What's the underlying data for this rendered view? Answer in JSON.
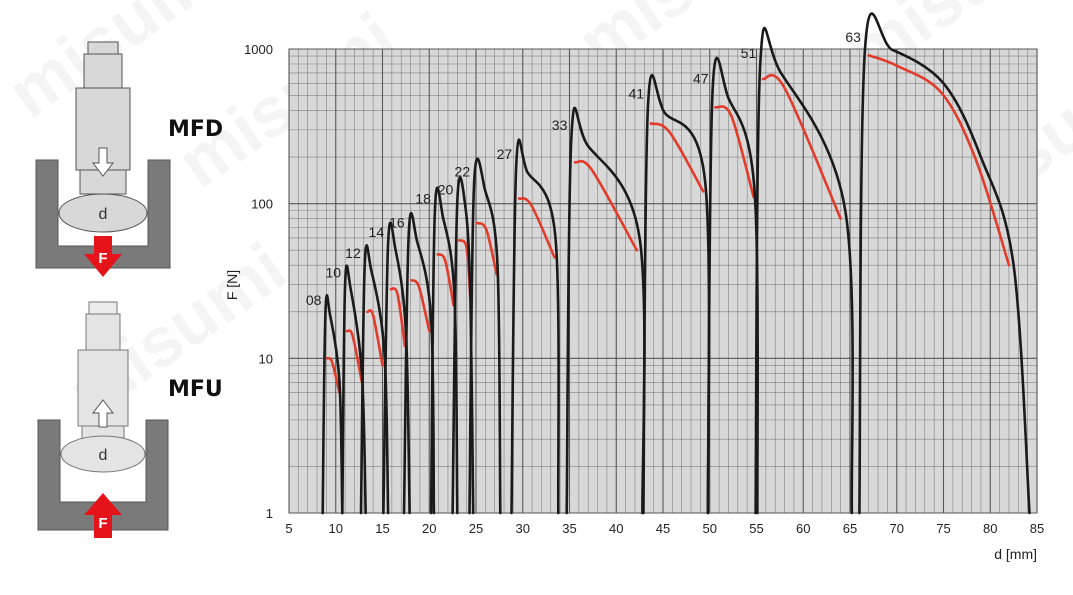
{
  "watermark": "misumi",
  "diagrams": {
    "top": {
      "mode_label": "MFD",
      "size_label": "d",
      "force_label": "F",
      "arrow": "down-arrow-icon"
    },
    "bottom": {
      "mode_label": "MFU",
      "size_label": "d",
      "force_label": "F",
      "arrow": "up-arrow-icon"
    },
    "colors": {
      "body": "#d8d8d8",
      "outline": "#555555",
      "housing": "#7a7a7a",
      "force_arrow": "#e5141b"
    }
  },
  "chart_data": {
    "type": "line",
    "title": "",
    "xlabel": "d [mm]",
    "ylabel": "F [N]",
    "xlim": [
      5,
      85
    ],
    "ylim": [
      1,
      1000
    ],
    "yscale": "log",
    "grid": true,
    "x_ticks": [
      "5",
      "10",
      "15",
      "20",
      "25",
      "30",
      "35",
      "40",
      "45",
      "50",
      "55",
      "60",
      "65",
      "70",
      "75",
      "80",
      "85"
    ],
    "y_ticks": [
      "1",
      "10",
      "100",
      "1000"
    ],
    "colors": {
      "plot_bg": "#d8d8d8",
      "grid": "#4a4a4a",
      "black_curve": "#1a1a1a",
      "red_curve": "#e23b2b"
    },
    "sizes": [
      {
        "label": "08",
        "black": [
          [
            8.6,
            1
          ],
          [
            8.9,
            20
          ],
          [
            9.4,
            19
          ],
          [
            10.4,
            7
          ],
          [
            10.7,
            1
          ]
        ],
        "red": [
          [
            9.1,
            10
          ],
          [
            9.6,
            9.5
          ],
          [
            10.4,
            6
          ]
        ]
      },
      {
        "label": "10",
        "black": [
          [
            10.7,
            1
          ],
          [
            11.0,
            30
          ],
          [
            11.6,
            28
          ],
          [
            12.8,
            8
          ],
          [
            13.2,
            1
          ]
        ],
        "red": [
          [
            11.2,
            15
          ],
          [
            11.8,
            14
          ],
          [
            12.8,
            7
          ]
        ]
      },
      {
        "label": "12",
        "black": [
          [
            12.7,
            1
          ],
          [
            13.1,
            40
          ],
          [
            13.8,
            37
          ],
          [
            15.2,
            11
          ],
          [
            15.6,
            1
          ]
        ],
        "red": [
          [
            13.4,
            20
          ],
          [
            14.0,
            19
          ],
          [
            15.0,
            9
          ]
        ]
      },
      {
        "label": "14",
        "black": [
          [
            15.1,
            1
          ],
          [
            15.6,
            55
          ],
          [
            16.4,
            50
          ],
          [
            17.5,
            15
          ],
          [
            17.9,
            1
          ]
        ],
        "red": [
          [
            15.9,
            28
          ],
          [
            16.6,
            26
          ],
          [
            17.4,
            12
          ]
        ]
      },
      {
        "label": "16",
        "black": [
          [
            17.3,
            1
          ],
          [
            17.8,
            63
          ],
          [
            18.7,
            57
          ],
          [
            20.2,
            18
          ],
          [
            20.5,
            1
          ]
        ],
        "red": [
          [
            18.1,
            32
          ],
          [
            18.9,
            29
          ],
          [
            20.0,
            15
          ]
        ]
      },
      {
        "label": "18",
        "black": [
          [
            20.2,
            1
          ],
          [
            20.6,
            90
          ],
          [
            21.5,
            80
          ],
          [
            22.7,
            25
          ],
          [
            23.0,
            1
          ]
        ],
        "red": [
          [
            20.9,
            47
          ],
          [
            21.7,
            43
          ],
          [
            22.6,
            22
          ]
        ]
      },
      {
        "label": "20",
        "black": [
          [
            22.5,
            1
          ],
          [
            23.0,
            103
          ],
          [
            23.9,
            92
          ],
          [
            24.4,
            25
          ],
          [
            24.7,
            1
          ]
        ],
        "red": [
          [
            23.2,
            58
          ],
          [
            24.0,
            52
          ],
          [
            24.4,
            24
          ]
        ]
      },
      {
        "label": "22",
        "black": [
          [
            24.3,
            1
          ],
          [
            24.8,
            135
          ],
          [
            26.0,
            120
          ],
          [
            27.3,
            40
          ],
          [
            27.6,
            1
          ]
        ],
        "red": [
          [
            25.1,
            75
          ],
          [
            26.1,
            68
          ],
          [
            27.2,
            35
          ]
        ]
      },
      {
        "label": "27",
        "black": [
          [
            28.8,
            1
          ],
          [
            29.3,
            175
          ],
          [
            30.5,
            160
          ],
          [
            33.5,
            60
          ],
          [
            33.8,
            1
          ]
        ],
        "red": [
          [
            29.6,
            108
          ],
          [
            30.9,
            98
          ],
          [
            33.4,
            45
          ]
        ]
      },
      {
        "label": "33",
        "black": [
          [
            34.7,
            1
          ],
          [
            35.2,
            270
          ],
          [
            36.9,
            240
          ],
          [
            42.5,
            60
          ],
          [
            42.8,
            1
          ]
        ],
        "red": [
          [
            35.6,
            185
          ],
          [
            37.4,
            165
          ],
          [
            42.2,
            50
          ]
        ]
      },
      {
        "label": "41",
        "black": [
          [
            42.9,
            1
          ],
          [
            43.4,
            430
          ],
          [
            45.2,
            385
          ],
          [
            49.5,
            140
          ],
          [
            49.8,
            1
          ]
        ],
        "red": [
          [
            43.7,
            330
          ],
          [
            45.7,
            290
          ],
          [
            49.3,
            120
          ]
        ]
      },
      {
        "label": "47",
        "black": [
          [
            49.8,
            1
          ],
          [
            50.3,
            540
          ],
          [
            52.0,
            480
          ],
          [
            54.8,
            120
          ],
          [
            55.1,
            1
          ]
        ],
        "red": [
          [
            50.6,
            420
          ],
          [
            52.3,
            370
          ],
          [
            54.7,
            110
          ]
        ]
      },
      {
        "label": "51",
        "black": [
          [
            54.9,
            1
          ],
          [
            55.4,
            790
          ],
          [
            57.5,
            720
          ],
          [
            64.5,
            90
          ],
          [
            65.2,
            1
          ]
        ],
        "red": [
          [
            55.7,
            640
          ],
          [
            58.0,
            560
          ],
          [
            64.0,
            80
          ]
        ]
      },
      {
        "label": "63",
        "black": [
          [
            66.0,
            1
          ],
          [
            66.6,
            1000
          ],
          [
            69.5,
            990
          ],
          [
            75.0,
            600
          ],
          [
            79.0,
            200
          ],
          [
            82.5,
            40
          ],
          [
            84.2,
            1
          ]
        ],
        "red": [
          [
            67.0,
            910
          ],
          [
            70.0,
            780
          ],
          [
            74.8,
            520
          ],
          [
            78.5,
            190
          ],
          [
            82.0,
            40
          ]
        ]
      }
    ]
  }
}
